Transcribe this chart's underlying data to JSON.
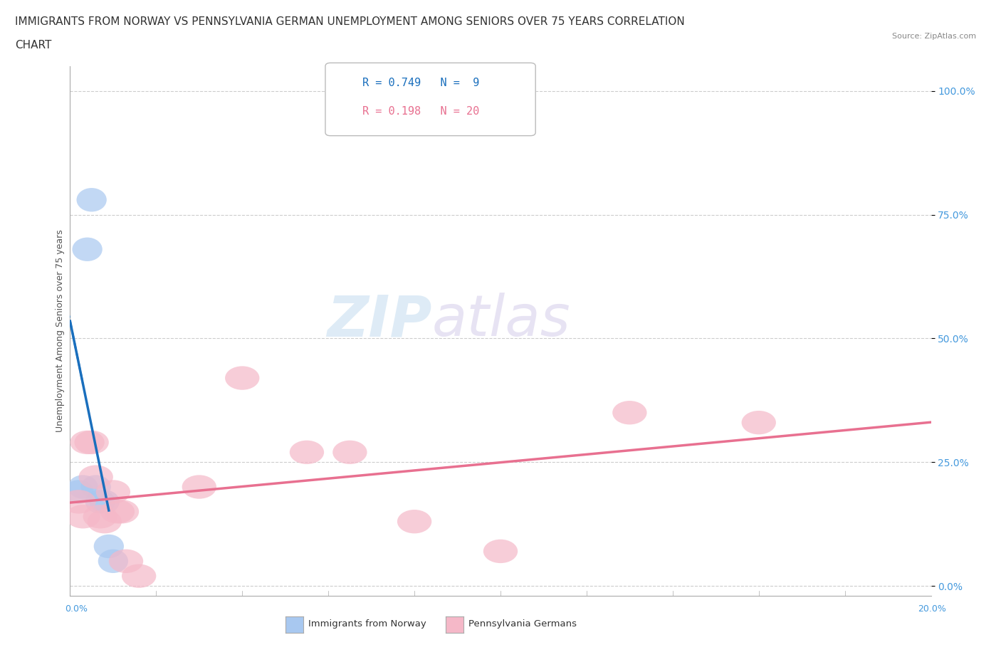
{
  "title_line1": "IMMIGRANTS FROM NORWAY VS PENNSYLVANIA GERMAN UNEMPLOYMENT AMONG SENIORS OVER 75 YEARS CORRELATION",
  "title_line2": "CHART",
  "source": "Source: ZipAtlas.com",
  "ylabel": "Unemployment Among Seniors over 75 years",
  "legend1_r": "0.749",
  "legend1_n": " 9",
  "legend2_r": "0.198",
  "legend2_n": "20",
  "norway_x": [
    0.002,
    0.003,
    0.004,
    0.005,
    0.006,
    0.007,
    0.008,
    0.009,
    0.01
  ],
  "norway_y": [
    0.19,
    0.2,
    0.68,
    0.78,
    0.2,
    0.17,
    0.17,
    0.08,
    0.05
  ],
  "pagerman_x": [
    0.002,
    0.003,
    0.004,
    0.005,
    0.006,
    0.007,
    0.008,
    0.01,
    0.011,
    0.012,
    0.013,
    0.016,
    0.03,
    0.04,
    0.055,
    0.065,
    0.08,
    0.1,
    0.13,
    0.16
  ],
  "pagerman_y": [
    0.17,
    0.14,
    0.29,
    0.29,
    0.22,
    0.14,
    0.13,
    0.19,
    0.15,
    0.15,
    0.05,
    0.02,
    0.2,
    0.42,
    0.27,
    0.27,
    0.13,
    0.07,
    0.35,
    0.33
  ],
  "norway_color": "#a8c8f0",
  "norway_line_color": "#1a6fbd",
  "pagerman_color": "#f5b8c8",
  "pagerman_line_color": "#e87090",
  "background_color": "#ffffff",
  "watermark_zip": "ZIP",
  "watermark_atlas": "atlas",
  "xlim": [
    0.0,
    0.2
  ],
  "ylim": [
    -0.02,
    1.05
  ],
  "yticks": [
    0.0,
    0.25,
    0.5,
    0.75,
    1.0
  ],
  "ytick_labels": [
    "0.0%",
    "25.0%",
    "50.0%",
    "75.0%",
    "100.0%"
  ],
  "xtick_labels": [
    "0.0%",
    "",
    "",
    "",
    "",
    "",
    "",
    "",
    "",
    "",
    "20.0%"
  ],
  "title_fontsize": 11,
  "axis_label_fontsize": 9,
  "legend_fontsize": 11
}
